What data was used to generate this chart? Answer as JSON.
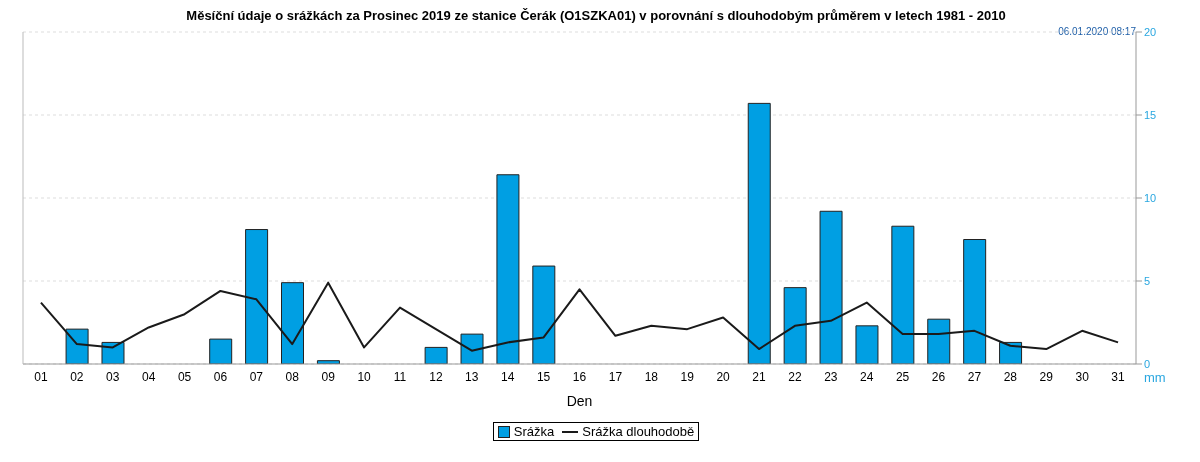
{
  "chart_data": {
    "type": "bar",
    "title": "Měsíční údaje o srážkách za Prosinec 2019 ze stanice Čerák (O1SZKA01) v porovnání s dlouhodobým průměrem v letech 1981 - 2010",
    "xlabel": "Den",
    "ylabel": "mm",
    "annotations": [
      "06.01.2020 08:17"
    ],
    "categories": [
      "01",
      "02",
      "03",
      "04",
      "05",
      "06",
      "07",
      "08",
      "09",
      "10",
      "11",
      "12",
      "13",
      "14",
      "15",
      "16",
      "17",
      "18",
      "19",
      "20",
      "21",
      "22",
      "23",
      "24",
      "25",
      "26",
      "27",
      "28",
      "29",
      "30",
      "31"
    ],
    "series": [
      {
        "name": "Srážka",
        "color": "#009fe3",
        "values": [
          0,
          2.1,
          1.3,
          0,
          0,
          1.5,
          8.1,
          4.9,
          0.2,
          0,
          0,
          1.0,
          1.8,
          11.4,
          5.9,
          0,
          0,
          0,
          0,
          0,
          15.7,
          4.6,
          9.2,
          2.3,
          8.3,
          2.7,
          7.5,
          1.3,
          0,
          0,
          0
        ]
      },
      {
        "name": "Srážka dlouhodobě",
        "type": "line",
        "color": "#1a1a1a",
        "values": [
          3.7,
          1.2,
          1.0,
          2.2,
          3.0,
          4.4,
          3.9,
          1.2,
          4.9,
          1.0,
          3.4,
          2.1,
          0.8,
          1.3,
          1.6,
          4.5,
          1.7,
          2.3,
          2.1,
          2.8,
          0.9,
          2.3,
          2.6,
          3.7,
          1.8,
          1.8,
          2.0,
          1.1,
          0.9,
          2.0,
          1.3
        ]
      }
    ],
    "ylim": [
      0,
      20
    ],
    "yticks": [
      0,
      5,
      10,
      15,
      20
    ],
    "grid": "y",
    "legend": "bottom"
  }
}
